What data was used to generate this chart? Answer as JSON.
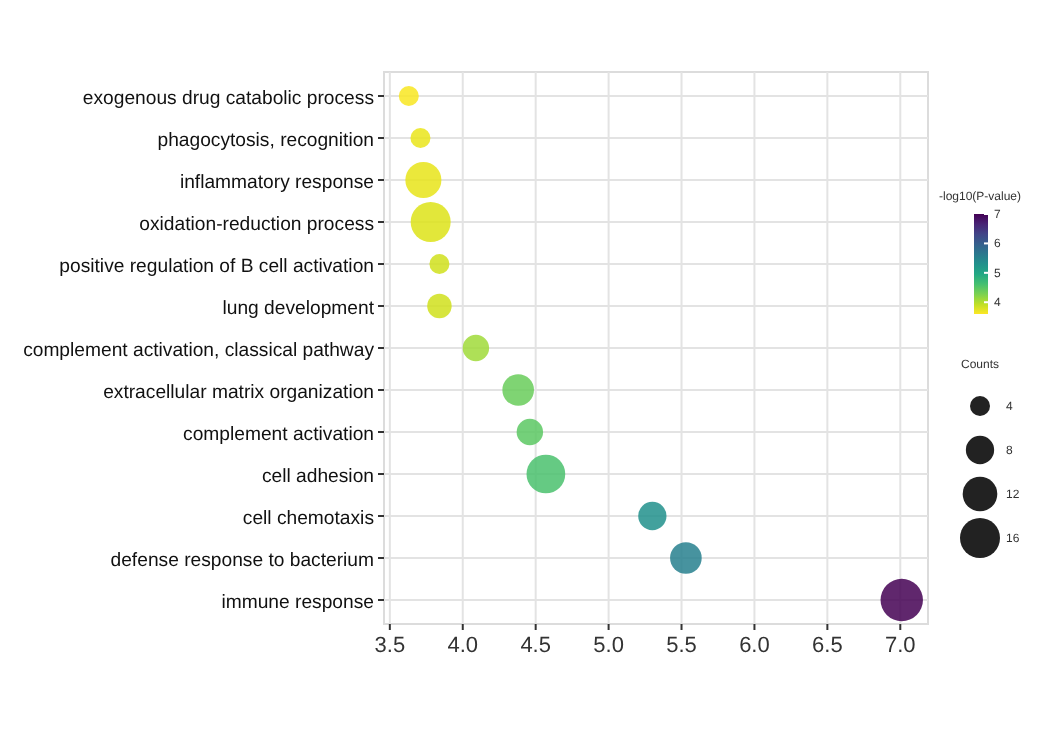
{
  "chart_data": {
    "type": "bubble",
    "orientation": "horizontal",
    "categories": [
      "exogenous drug catabolic process",
      "phagocytosis, recognition",
      "inflammatory response",
      "oxidation-reduction process",
      "positive regulation of B cell activation",
      "lung development",
      "complement activation, classical pathway",
      "extracellular matrix organization",
      "complement activation",
      "cell adhesion",
      "cell chemotaxis",
      "defense response to bacterium",
      "immune response"
    ],
    "values": [
      3.63,
      3.71,
      3.73,
      3.78,
      3.84,
      3.84,
      4.09,
      4.38,
      4.46,
      4.57,
      5.3,
      5.53,
      7.01
    ],
    "cvalues": [
      3.63,
      3.71,
      3.73,
      3.78,
      3.84,
      3.84,
      4.09,
      4.38,
      4.46,
      4.57,
      5.3,
      5.53,
      7.01
    ],
    "sizes": [
      4,
      4,
      13,
      16,
      4,
      6,
      7,
      10,
      7,
      15,
      8,
      10,
      18
    ],
    "size_legend": [
      4,
      8,
      12,
      16
    ],
    "legend_title": "Counts",
    "clabel": "-log10(P-value)",
    "clim": [
      3.6,
      7.0
    ],
    "cticks": [
      4,
      5,
      6,
      7
    ],
    "xlim": [
      3.46,
      7.19
    ],
    "xticks": [
      3.5,
      {
        "value": 4,
        "label": "4.0"
      },
      4.5,
      {
        "value": 5,
        "label": "5.0"
      },
      5.5,
      {
        "value": 6,
        "label": "6.0"
      },
      6.5,
      {
        "value": 7,
        "label": "7.0"
      }
    ],
    "grid": true
  }
}
